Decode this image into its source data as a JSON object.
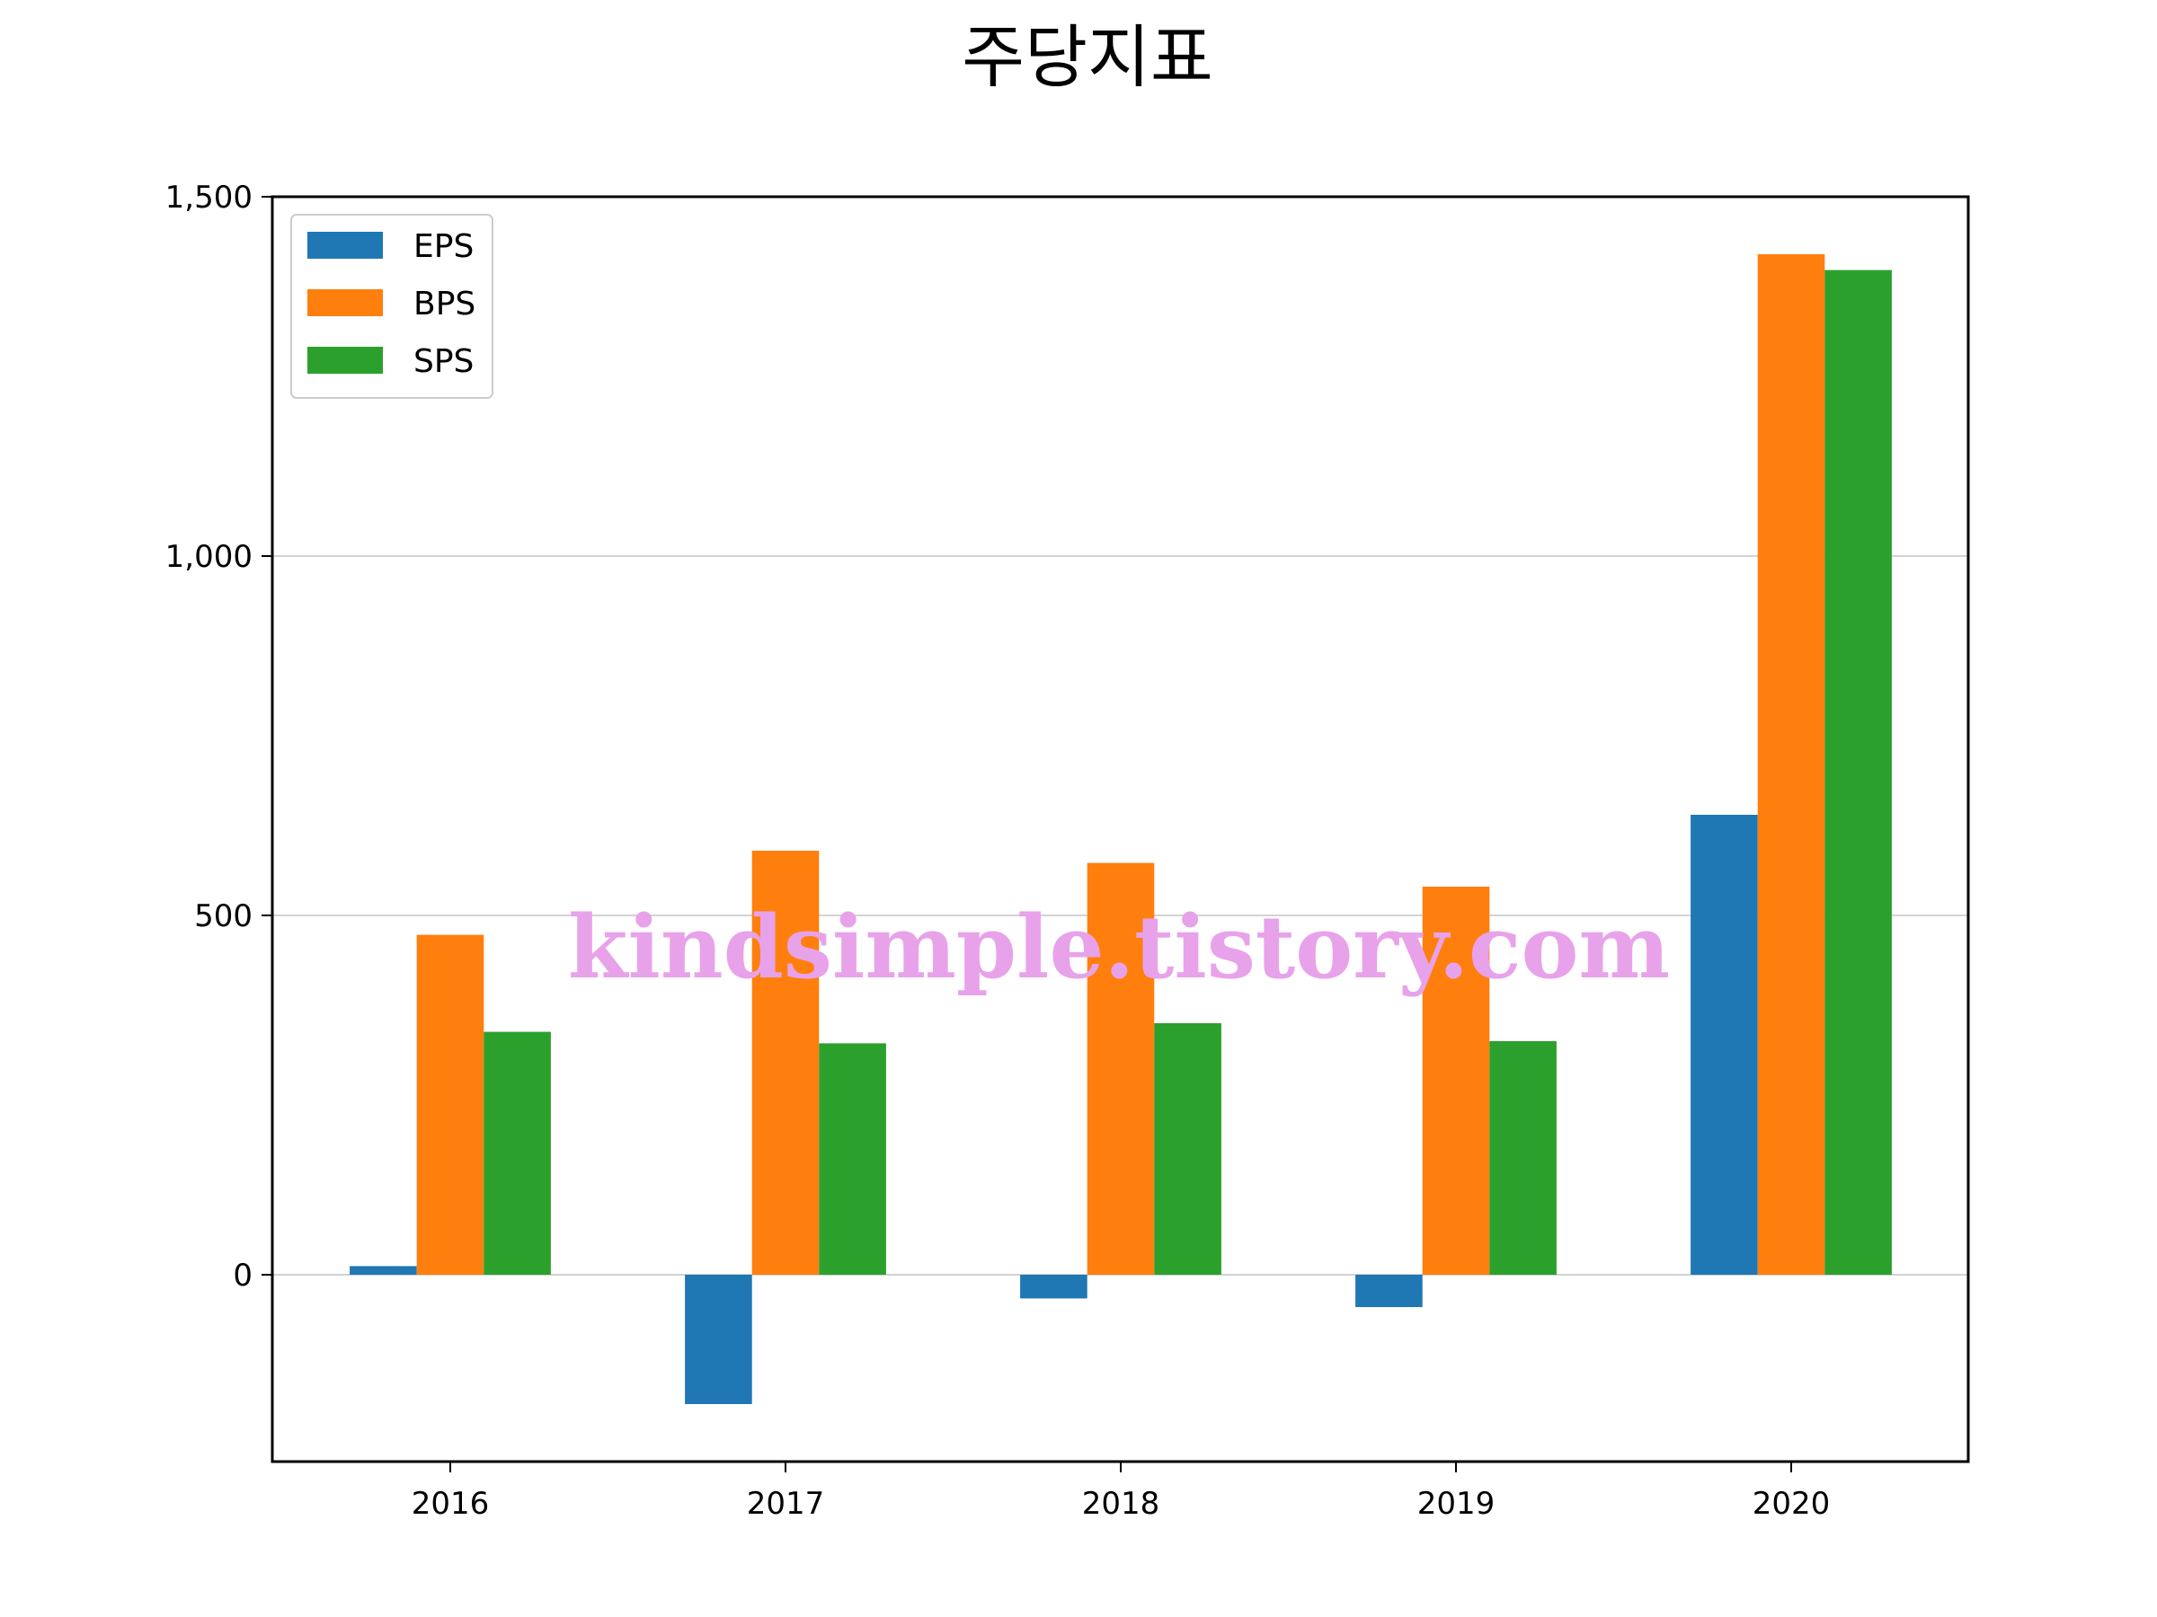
{
  "chart_data": {
    "type": "bar",
    "title": "주당지표",
    "xlabel": "",
    "ylabel": "",
    "categories": [
      "2016",
      "2017",
      "2018",
      "2019",
      "2020"
    ],
    "series": [
      {
        "name": "EPS",
        "color": "#1f77b4",
        "values": [
          12,
          -180,
          -33,
          -45,
          640
        ]
      },
      {
        "name": "BPS",
        "color": "#ff7f0e",
        "values": [
          473,
          590,
          573,
          540,
          1420
        ]
      },
      {
        "name": "SPS",
        "color": "#2ca02c",
        "values": [
          338,
          322,
          350,
          325,
          1398
        ]
      }
    ],
    "ylim": [
      -260,
      1500
    ],
    "yticks": [
      0,
      500,
      1000,
      1500
    ],
    "ytick_labels": [
      "0",
      "500",
      "1,000",
      "1,500"
    ],
    "grid": "horizontal",
    "legend": "top-left"
  },
  "watermark": "kindsimple.tistory.com",
  "colors": {
    "watermark": "#e8a2ea",
    "grid": "#d3d3d3",
    "axes": "#000000"
  }
}
